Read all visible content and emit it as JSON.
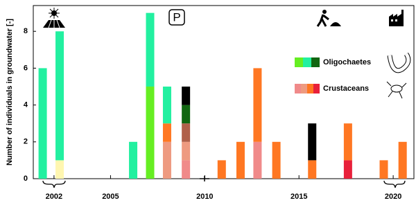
{
  "chart_data": {
    "type": "bar",
    "stacked": true,
    "y_label": "Number of individuals in groundwater [-]",
    "x": [
      2001.4,
      2002.3,
      2006.2,
      2007.1,
      2008.0,
      2009.0,
      2010.9,
      2011.9,
      2012.8,
      2013.8,
      2015.7,
      2017.6,
      2019.5,
      2020.5
    ],
    "series": [
      {
        "color": "#fff6b0",
        "values": [
          null,
          1,
          null,
          null,
          null,
          null,
          null,
          null,
          null,
          null,
          null,
          null,
          null,
          null
        ]
      },
      {
        "color": "#66ee22",
        "values": [
          null,
          null,
          null,
          5,
          null,
          null,
          null,
          null,
          null,
          null,
          null,
          null,
          null,
          null
        ]
      },
      {
        "color": "#f08a8a",
        "values": [
          null,
          null,
          null,
          null,
          null,
          1,
          null,
          null,
          2,
          null,
          null,
          null,
          null,
          null
        ]
      },
      {
        "color": "#ee9a80",
        "values": [
          null,
          null,
          null,
          null,
          2,
          1,
          null,
          null,
          null,
          null,
          null,
          null,
          null,
          null
        ]
      },
      {
        "color": "#e8203a",
        "values": [
          null,
          null,
          null,
          null,
          null,
          null,
          null,
          null,
          null,
          null,
          null,
          1,
          null,
          null
        ]
      },
      {
        "color": "#b0604a",
        "values": [
          null,
          null,
          null,
          null,
          null,
          1,
          null,
          null,
          null,
          null,
          null,
          null,
          null,
          null
        ]
      },
      {
        "color": "#ff7722",
        "values": [
          null,
          null,
          null,
          null,
          1,
          null,
          1,
          2,
          4,
          2,
          1,
          2,
          1,
          2
        ]
      },
      {
        "color": "#116611",
        "values": [
          null,
          null,
          null,
          null,
          null,
          1,
          null,
          null,
          null,
          null,
          null,
          null,
          null,
          null
        ]
      },
      {
        "color": "#22f0a0",
        "values": [
          6,
          7,
          2,
          4,
          2,
          null,
          null,
          null,
          null,
          null,
          null,
          null,
          null,
          null
        ]
      },
      {
        "color": "#000000",
        "values": [
          null,
          null,
          null,
          null,
          null,
          1,
          null,
          null,
          null,
          null,
          2,
          null,
          null,
          null
        ]
      }
    ],
    "legend": [
      {
        "label": "Oligochaetes",
        "colors": [
          "#66ee22",
          "#22f0a0",
          "#116611"
        ]
      },
      {
        "label": "Crustaceans",
        "colors": [
          "#f08a8a",
          "#ee9a80",
          "#ff7722",
          "#e8203a"
        ]
      }
    ],
    "xlim": [
      2000.9,
      2021.1
    ],
    "xticks": [
      2002,
      2005,
      2010,
      2015,
      2020
    ],
    "ylim": [
      0,
      9.4
    ],
    "yticks": [
      0,
      2,
      4,
      6,
      8
    ],
    "annotation": "P"
  }
}
